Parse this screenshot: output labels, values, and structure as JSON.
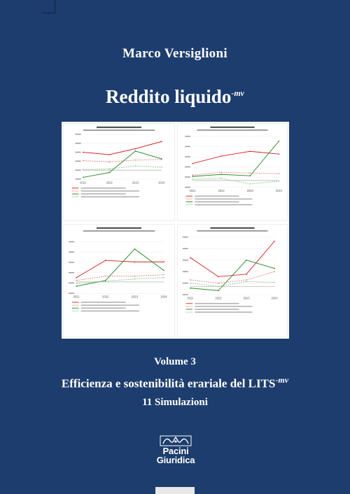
{
  "book": {
    "author": "Marco Versiglioni",
    "title": "Reddito liquido",
    "title_superscript": "-mv",
    "volume": "Volume 3",
    "subtitle": "Efficienza e sostenibilità erariale del LITS",
    "subtitle_superscript": "-mv",
    "simulations": "11 Simulazioni",
    "publisher_line1": "Pacini",
    "publisher_line2": "Giuridica"
  },
  "colors": {
    "background": "#1d3d6e",
    "text": "#ffffff",
    "series_red": "#d42a2a",
    "series_green": "#2e8b2e",
    "series_pink": "#e88a8a",
    "series_lightgreen": "#8ccc8c"
  },
  "chart_data": [
    {
      "type": "line",
      "x": [
        "2021",
        "2022",
        "2023",
        "2024"
      ],
      "series": [
        {
          "color": "#d42a2a",
          "values": [
            3,
            2.6,
            3.6,
            4.8
          ]
        },
        {
          "color": "#e88a8a",
          "values": [
            1.6,
            1.4,
            1.7,
            1.8
          ]
        },
        {
          "color": "#2e8b2e",
          "values": [
            -1.2,
            -0.4,
            3.2,
            1.9
          ]
        },
        {
          "color": "#8ccc8c",
          "values": [
            0.1,
            0.2,
            0.7,
            0.5
          ]
        }
      ],
      "ylim": [
        -1.5,
        6
      ]
    },
    {
      "type": "line",
      "x": [
        "2021",
        "2022",
        "2023",
        "2024"
      ],
      "series": [
        {
          "color": "#d42a2a",
          "values": [
            2.5,
            3.6,
            4.3,
            3.9
          ]
        },
        {
          "color": "#e88a8a",
          "values": [
            0.8,
            1.2,
            1.1,
            1.0
          ]
        },
        {
          "color": "#2e8b2e",
          "values": [
            0.6,
            0.9,
            0.7,
            5.8
          ]
        },
        {
          "color": "#8ccc8c",
          "values": [
            0.2,
            0.3,
            -0.5,
            -0.1
          ]
        }
      ],
      "ylim": [
        -1,
        6.5
      ]
    },
    {
      "type": "line",
      "x": [
        "2021",
        "2022",
        "2023",
        "2024"
      ],
      "series": [
        {
          "color": "#d42a2a",
          "values": [
            0.3,
            1.5,
            1.4,
            1.4
          ]
        },
        {
          "color": "#e88a8a",
          "values": [
            0.1,
            0.4,
            0.4,
            0.5
          ]
        },
        {
          "color": "#2e8b2e",
          "values": [
            -0.3,
            0.1,
            2.3,
            0.8
          ]
        },
        {
          "color": "#8ccc8c",
          "values": [
            -0.1,
            0.05,
            0.2,
            0.3
          ]
        }
      ],
      "ylim": [
        -0.8,
        2.8
      ]
    },
    {
      "type": "line",
      "x": [
        "2021",
        "2022",
        "2023",
        "2024"
      ],
      "series": [
        {
          "color": "#d42a2a",
          "values": [
            3.5,
            1.2,
            1.5,
            5.5
          ]
        },
        {
          "color": "#e88a8a",
          "values": [
            0.8,
            0.4,
            0.8,
            1.8
          ]
        },
        {
          "color": "#2e8b2e",
          "values": [
            -0.2,
            -0.5,
            3.2,
            2.2
          ]
        },
        {
          "color": "#8ccc8c",
          "values": [
            0.4,
            0.0,
            0.6,
            0.5
          ]
        }
      ],
      "ylim": [
        -1,
        6
      ]
    }
  ]
}
